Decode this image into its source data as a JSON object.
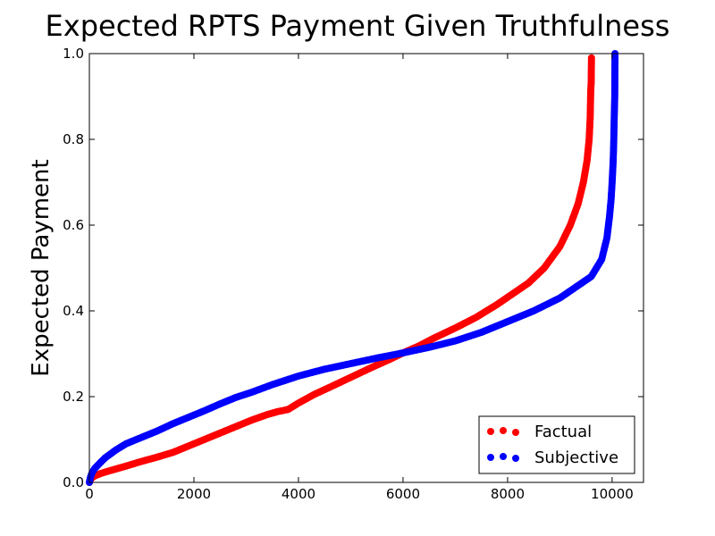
{
  "chart_data": {
    "type": "scatter",
    "title": "Expected RPTS Payment Given Truthfulness",
    "xlabel": "",
    "ylabel": "Expected Payment",
    "xlim": [
      0,
      10600
    ],
    "ylim": [
      0,
      1.0
    ],
    "xticks": [
      0,
      2000,
      4000,
      6000,
      8000,
      10000
    ],
    "yticks": [
      0.0,
      0.2,
      0.4,
      0.6,
      0.8,
      1.0
    ],
    "xtick_labels": [
      "0",
      "2000",
      "4000",
      "6000",
      "8000",
      "10000"
    ],
    "ytick_labels": [
      "0.0",
      "0.2",
      "0.4",
      "0.6",
      "0.8",
      "1.0"
    ],
    "grid": false,
    "legend_position": "bottom-right",
    "series": [
      {
        "name": "Factual",
        "color": "#ff0000",
        "points": [
          [
            0,
            0.0
          ],
          [
            20,
            0.006
          ],
          [
            50,
            0.011
          ],
          [
            100,
            0.015
          ],
          [
            200,
            0.02
          ],
          [
            300,
            0.024
          ],
          [
            500,
            0.031
          ],
          [
            700,
            0.038
          ],
          [
            1000,
            0.049
          ],
          [
            1300,
            0.059
          ],
          [
            1600,
            0.07
          ],
          [
            1900,
            0.085
          ],
          [
            2200,
            0.1
          ],
          [
            2500,
            0.115
          ],
          [
            2800,
            0.13
          ],
          [
            3100,
            0.145
          ],
          [
            3400,
            0.158
          ],
          [
            3600,
            0.165
          ],
          [
            3800,
            0.17
          ],
          [
            4000,
            0.185
          ],
          [
            4300,
            0.205
          ],
          [
            4600,
            0.222
          ],
          [
            5000,
            0.245
          ],
          [
            5400,
            0.268
          ],
          [
            5800,
            0.29
          ],
          [
            6000,
            0.302
          ],
          [
            6300,
            0.318
          ],
          [
            6600,
            0.337
          ],
          [
            7000,
            0.36
          ],
          [
            7400,
            0.385
          ],
          [
            7800,
            0.415
          ],
          [
            8100,
            0.44
          ],
          [
            8400,
            0.465
          ],
          [
            8700,
            0.5
          ],
          [
            9000,
            0.55
          ],
          [
            9200,
            0.6
          ],
          [
            9350,
            0.65
          ],
          [
            9450,
            0.7
          ],
          [
            9520,
            0.75
          ],
          [
            9560,
            0.8
          ],
          [
            9580,
            0.85
          ],
          [
            9590,
            0.91
          ],
          [
            9600,
            0.935
          ],
          [
            9605,
            0.99
          ]
        ]
      },
      {
        "name": "Subjective",
        "color": "#0000ff",
        "points": [
          [
            0,
            0.0
          ],
          [
            20,
            0.012
          ],
          [
            50,
            0.022
          ],
          [
            100,
            0.032
          ],
          [
            200,
            0.045
          ],
          [
            300,
            0.057
          ],
          [
            500,
            0.075
          ],
          [
            700,
            0.09
          ],
          [
            1000,
            0.105
          ],
          [
            1300,
            0.12
          ],
          [
            1600,
            0.137
          ],
          [
            1900,
            0.152
          ],
          [
            2200,
            0.167
          ],
          [
            2500,
            0.183
          ],
          [
            2800,
            0.198
          ],
          [
            3100,
            0.21
          ],
          [
            3500,
            0.228
          ],
          [
            4000,
            0.248
          ],
          [
            4500,
            0.264
          ],
          [
            5000,
            0.277
          ],
          [
            5500,
            0.29
          ],
          [
            6000,
            0.302
          ],
          [
            6500,
            0.315
          ],
          [
            7000,
            0.33
          ],
          [
            7500,
            0.35
          ],
          [
            8000,
            0.375
          ],
          [
            8500,
            0.4
          ],
          [
            9000,
            0.43
          ],
          [
            9300,
            0.455
          ],
          [
            9600,
            0.48
          ],
          [
            9800,
            0.52
          ],
          [
            9900,
            0.57
          ],
          [
            9950,
            0.62
          ],
          [
            9980,
            0.66
          ],
          [
            10000,
            0.7
          ],
          [
            10020,
            0.75
          ],
          [
            10030,
            0.79
          ],
          [
            10040,
            0.85
          ],
          [
            10050,
            0.9
          ],
          [
            10055,
            1.0
          ]
        ]
      }
    ]
  }
}
